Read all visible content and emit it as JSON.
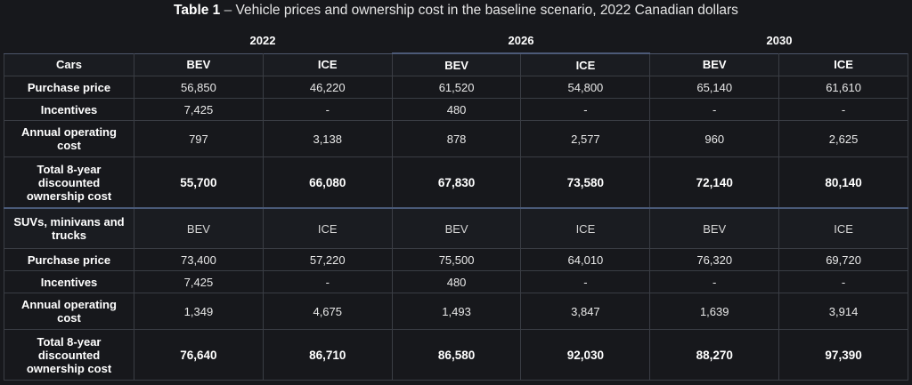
{
  "title": {
    "label": "Table 1",
    "dash": " – ",
    "text": "Vehicle prices and ownership cost in the baseline scenario, 2022 Canadian dollars"
  },
  "years": [
    "2022",
    "2026",
    "2030"
  ],
  "sections": [
    {
      "header": "Cars",
      "columns": [
        "BEV",
        "ICE",
        "BEV",
        "ICE",
        "BEV",
        "ICE"
      ],
      "rows": [
        {
          "label": "Purchase price",
          "values": [
            "56,850",
            "46,220",
            "61,520",
            "54,800",
            "65,140",
            "61,610"
          ]
        },
        {
          "label": "Incentives",
          "values": [
            "7,425",
            "-",
            "480",
            "-",
            "-",
            "-"
          ]
        },
        {
          "label": "Annual operating cost",
          "values": [
            "797",
            "3,138",
            "878",
            "2,577",
            "960",
            "2,625"
          ]
        },
        {
          "label": "Total 8-year discounted ownership cost",
          "values": [
            "55,700",
            "66,080",
            "67,830",
            "73,580",
            "72,140",
            "80,140"
          ]
        }
      ]
    },
    {
      "header": "SUVs, minivans and trucks",
      "columns": [
        "BEV",
        "ICE",
        "BEV",
        "ICE",
        "BEV",
        "ICE"
      ],
      "rows": [
        {
          "label": "Purchase price",
          "values": [
            "73,400",
            "57,220",
            "75,500",
            "64,010",
            "76,320",
            "69,720"
          ]
        },
        {
          "label": "Incentives",
          "values": [
            "7,425",
            "-",
            "480",
            "-",
            "-",
            "-"
          ]
        },
        {
          "label": "Annual operating cost",
          "values": [
            "1,349",
            "4,675",
            "1,493",
            "3,847",
            "1,639",
            "3,914"
          ]
        },
        {
          "label": "Total 8-year discounted ownership cost",
          "values": [
            "76,640",
            "86,710",
            "86,580",
            "92,030",
            "88,270",
            "97,390"
          ]
        }
      ]
    }
  ]
}
